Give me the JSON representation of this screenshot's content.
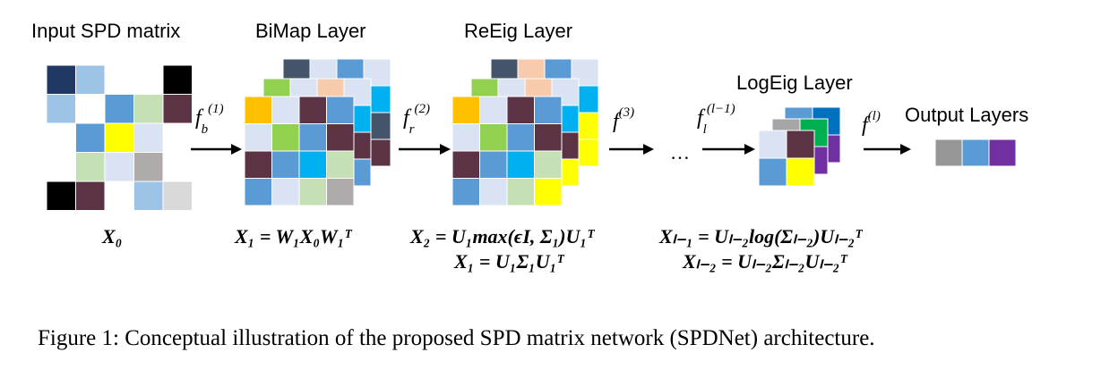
{
  "labels": {
    "input": "Input SPD matrix",
    "bimap": "BiMap Layer",
    "reeig": "ReEig Layer",
    "logeig": "LogEig Layer",
    "output": "Output Layers"
  },
  "functions": {
    "fb_base": "f",
    "fb_sub": "b",
    "fb_sup": "(1)",
    "fr_base": "f",
    "fr_sub": "r",
    "fr_sup": "(2)",
    "f3_base": "f",
    "f3_sup": "(3)",
    "fl_base": "f",
    "fl_sub": "l",
    "fl_sup": "(l−1)",
    "fout_base": "f",
    "fout_sup": "(l)",
    "ellipsis": "…"
  },
  "equations": {
    "x0": "X₀",
    "bimap": "X₁ = W₁X₀W₁ᵀ",
    "reeig_1": "X₂ = U₁max(ϵI, Σ₁)U₁ᵀ",
    "reeig_2": "X₁ = U₁Σ₁U₁ᵀ",
    "logeig_1": "Xₗ₋₁ = Uₗ₋₂log(Σₗ₋₂)Uₗ₋₂ᵀ",
    "logeig_2": "Xₗ₋₂ = Uₗ₋₂Σₗ₋₂Uₗ₋₂ᵀ"
  },
  "caption": "Figure 1: Conceptual illustration of the proposed SPD matrix network (SPDNet) architecture.",
  "colors": {
    "navy": "#203864",
    "lightblue": "#9DC3E6",
    "white": "#FFFFFF",
    "black": "#000000",
    "blue": "#5B9BD5",
    "yellow": "#FFFF00",
    "mint": "#C5E0B4",
    "pale": "#DAE3F3",
    "gray": "#AFABAB",
    "plum": "#5B3344",
    "lightgray": "#D9D9D9",
    "orange": "#FFC000",
    "green": "#92D050",
    "cyan": "#00B0F0",
    "peach": "#F8CBAD",
    "darkblue": "#0070C0",
    "purple": "#7030A0",
    "mid_gray": "#A6A6A6",
    "out_gray": "#969696",
    "out_blue": "#5B9BD5",
    "out_purple": "#7030A0",
    "darkgreen": "#00B050",
    "slate": "#44546A"
  }
}
